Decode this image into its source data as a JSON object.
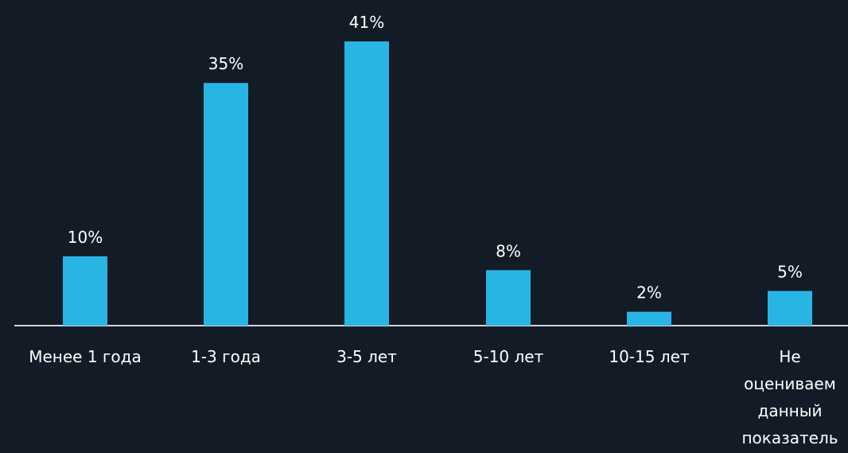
{
  "chart_data": {
    "type": "bar",
    "title": "",
    "xlabel": "",
    "ylabel": "",
    "categories": [
      "Менее 1 года",
      "1-3 года",
      "3-5 лет",
      "5-10 лет",
      "10-15 лет",
      "Не оцениваем данный показатель"
    ],
    "category_lines": [
      [
        "Менее 1 года"
      ],
      [
        "1-3 года"
      ],
      [
        "3-5 лет"
      ],
      [
        "5-10 лет"
      ],
      [
        "10-15 лет"
      ],
      [
        "Не",
        "оцениваем",
        "данный",
        "показатель"
      ]
    ],
    "values": [
      10,
      35,
      41,
      8,
      2,
      5
    ],
    "value_labels": [
      "10%",
      "35%",
      "41%",
      "8%",
      "2%",
      "5%"
    ],
    "unit": "%",
    "ylim": [
      0,
      41
    ],
    "grid": false,
    "legend": "none",
    "colors": {
      "background": "#131b26",
      "bar": "#29b5e3",
      "axis": "#d0d4da",
      "text": "#ffffff"
    }
  }
}
